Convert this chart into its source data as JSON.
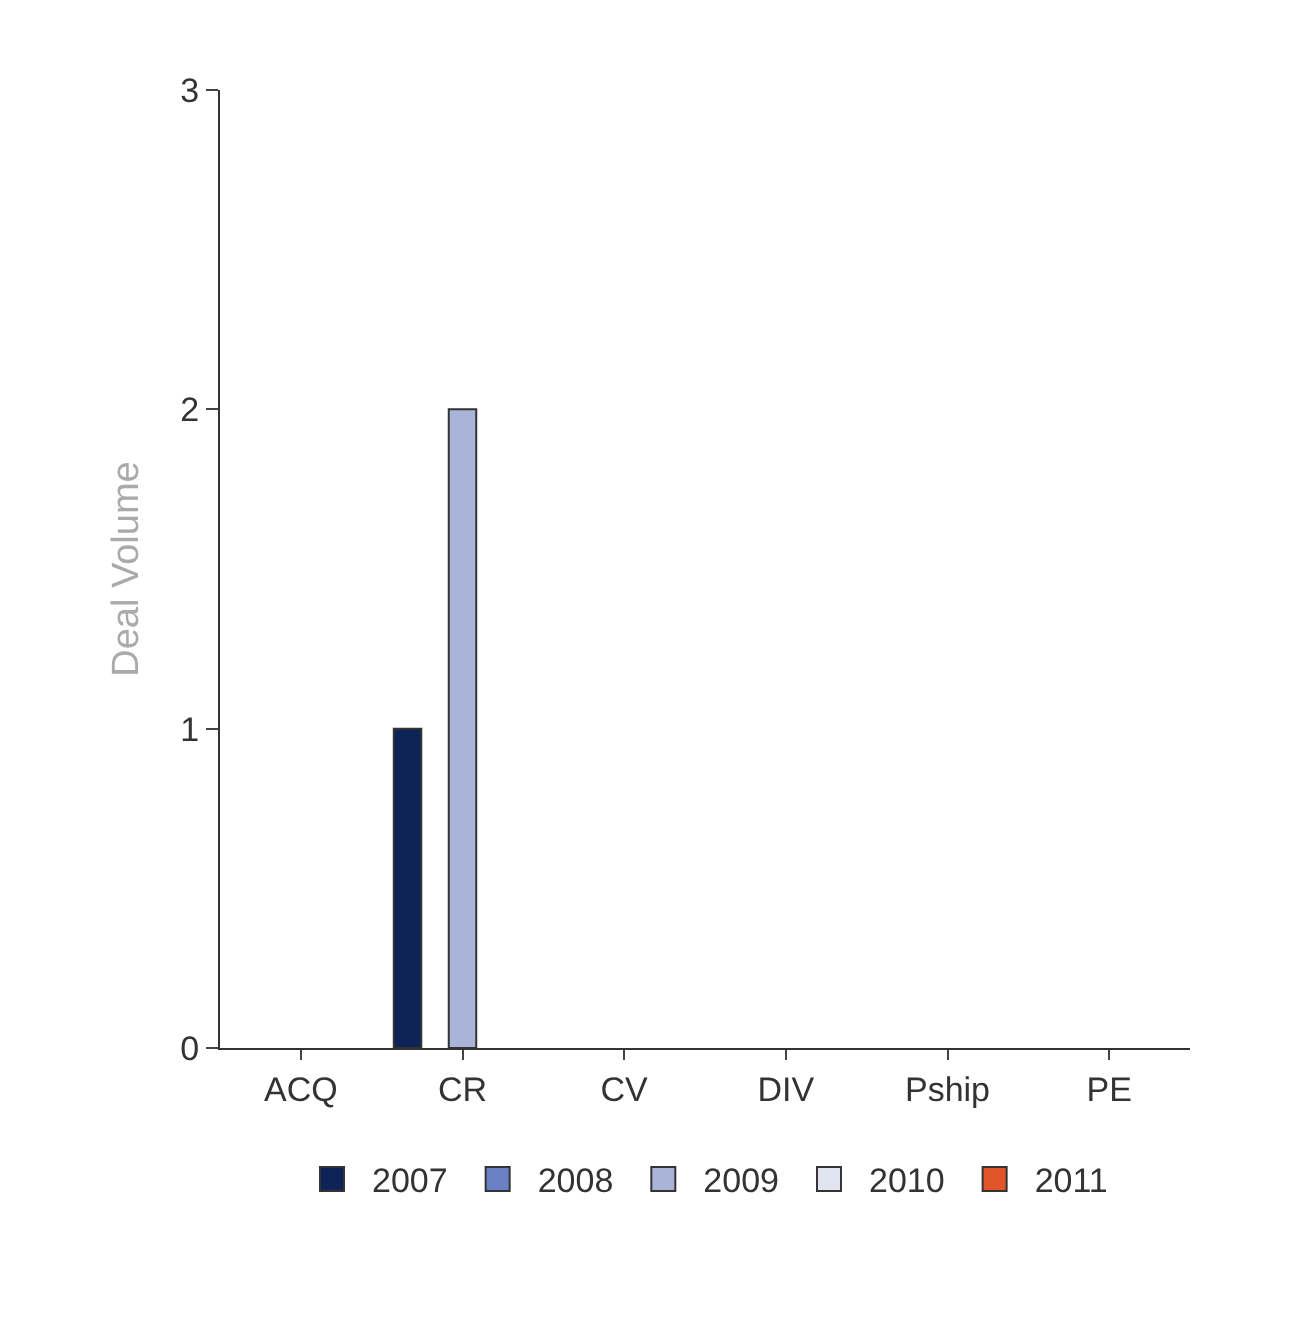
{
  "chart_data": {
    "type": "bar",
    "ylabel": "Deal Volume",
    "categories": [
      "ACQ",
      "CR",
      "CV",
      "DIV",
      "Pship",
      "PE"
    ],
    "series": [
      {
        "name": "2007",
        "color": "#0f2456",
        "values": [
          null,
          1,
          null,
          null,
          null,
          null
        ]
      },
      {
        "name": "2008",
        "color": "#6a80c4",
        "values": [
          null,
          null,
          null,
          null,
          null,
          null
        ]
      },
      {
        "name": "2009",
        "color": "#aab4d8",
        "values": [
          null,
          2,
          null,
          null,
          null,
          null
        ]
      },
      {
        "name": "2010",
        "color": "#dfe4f0",
        "values": [
          null,
          null,
          null,
          null,
          null,
          null
        ]
      },
      {
        "name": "2011",
        "color": "#e0562a",
        "values": [
          null,
          null,
          null,
          null,
          null,
          null
        ]
      }
    ],
    "ylim": [
      0,
      3
    ],
    "yticks": [
      0,
      1,
      2,
      3
    ],
    "legend": "bottom"
  }
}
